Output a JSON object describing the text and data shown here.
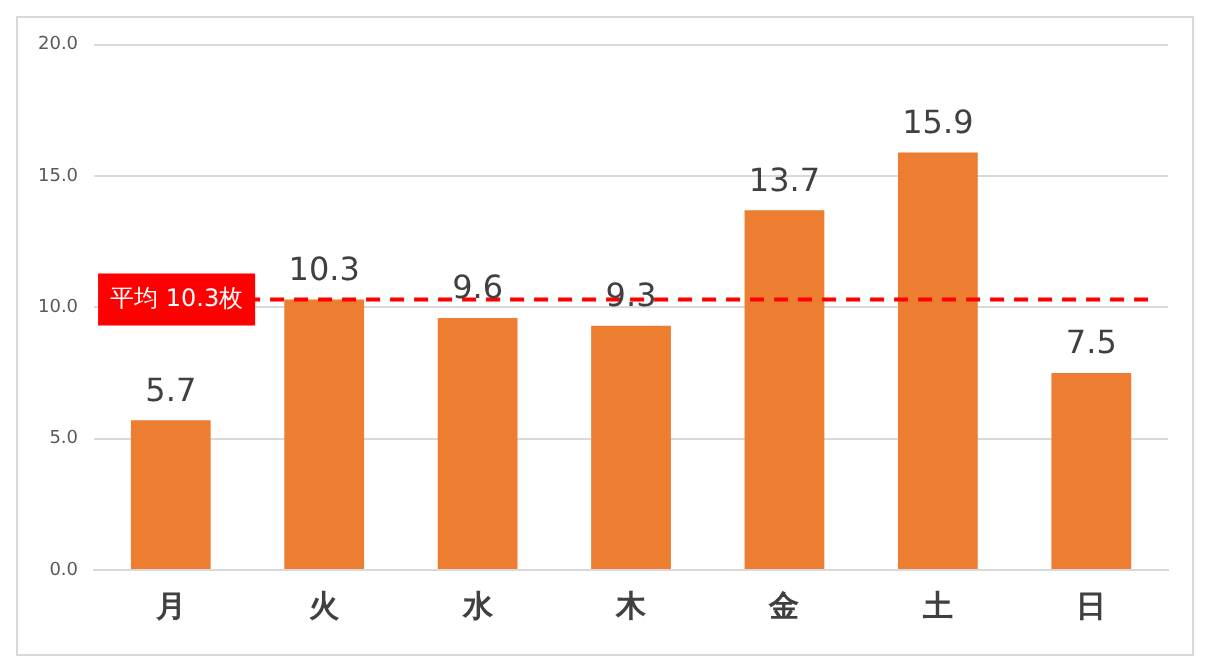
{
  "chart_data": {
    "type": "bar",
    "categories": [
      "月",
      "火",
      "水",
      "木",
      "金",
      "土",
      "日"
    ],
    "values": [
      5.7,
      10.3,
      9.6,
      9.3,
      13.7,
      15.9,
      7.5
    ],
    "color": "#ed7d31",
    "ylim": [
      0,
      20
    ],
    "yticks": [
      {
        "value": 0,
        "label": "0.0"
      },
      {
        "value": 5,
        "label": "5.0"
      },
      {
        "value": 10,
        "label": "10.0"
      },
      {
        "value": 15,
        "label": "15.0"
      },
      {
        "value": 20,
        "label": "20.0"
      }
    ],
    "grid": "y",
    "data_labels": true,
    "ref_lines": [
      {
        "axis": "y",
        "value": 10.3,
        "label": "平均 10.3枚",
        "color": "#ff0000",
        "line_style": "dashed"
      }
    ]
  }
}
